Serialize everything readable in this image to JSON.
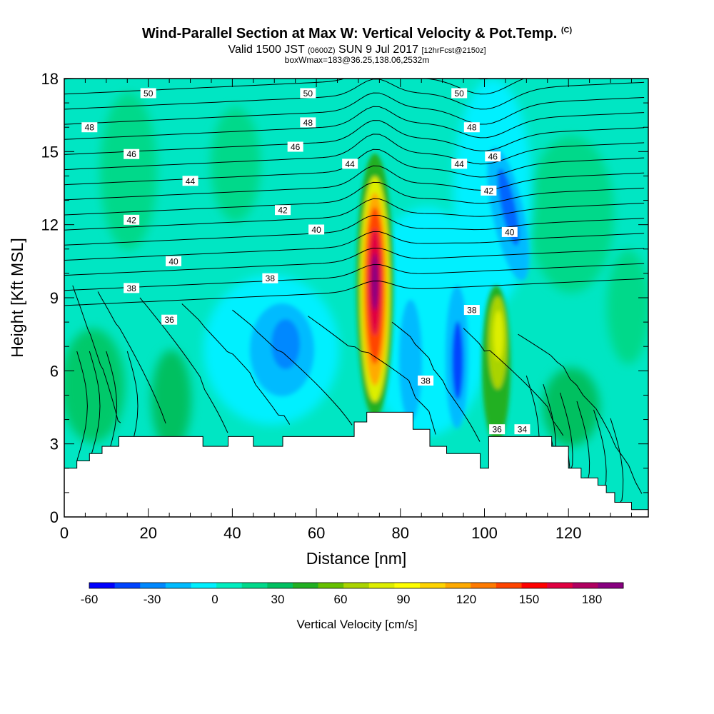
{
  "title": {
    "main": "Wind-Parallel Section at Max W: Vertical Velocity & Pot.Temp.",
    "copyright": "(C)",
    "valid_a": "Valid 1500 JST",
    "valid_zone": "(0600Z)",
    "valid_b": "SUN 9 Jul 2017",
    "valid_fcst": "[12hrFcst@2150z]",
    "box": "boxWmax=183@36.25,138.06,2532m"
  },
  "chart_data": {
    "type": "heatmap",
    "xlabel": "Distance [nm]",
    "ylabel": "Height [Kft MSL]",
    "xlim": [
      0,
      139
    ],
    "ylim": [
      0,
      18
    ],
    "xticks": [
      0,
      20,
      40,
      60,
      80,
      100,
      120
    ],
    "yticks": [
      0,
      3,
      6,
      9,
      12,
      15,
      18
    ],
    "grid": false,
    "colorbar": {
      "label": "Vertical Velocity [cm/s]",
      "range": [
        -60,
        195
      ],
      "step": 15,
      "tick_labels": [
        "-60",
        "-30",
        "0",
        "30",
        "60",
        "90",
        "120",
        "150",
        "180"
      ],
      "tick_values": [
        -60,
        -30,
        0,
        30,
        60,
        90,
        120,
        150,
        180
      ],
      "colors": [
        "#0000ff",
        "#0044ff",
        "#0088ff",
        "#00bbff",
        "#00f0ff",
        "#00eec0",
        "#00d98a",
        "#00c060",
        "#22b022",
        "#66c000",
        "#aad400",
        "#ddee00",
        "#ffff00",
        "#ffd400",
        "#ffaa00",
        "#ff7a00",
        "#ff4400",
        "#ff0000",
        "#e00040",
        "#b00060",
        "#880080"
      ]
    },
    "vertical_velocity_features": [
      {
        "x": 74.5,
        "y": 10.0,
        "peak": 183
      },
      {
        "x": 103.5,
        "y": 7.5,
        "peak": 60
      },
      {
        "x": 94,
        "y": 6.5,
        "peak": -60
      },
      {
        "x": 53,
        "y": 7.2,
        "peak": -45
      },
      {
        "x": 104,
        "y": 12.5,
        "peak": -55
      },
      {
        "x": 82,
        "y": 6.5,
        "peak": -25
      }
    ],
    "potential_temperature_labels": [
      {
        "text": "50",
        "x": 20,
        "y": 17.4
      },
      {
        "text": "50",
        "x": 58,
        "y": 17.4
      },
      {
        "text": "50",
        "x": 94,
        "y": 17.4
      },
      {
        "text": "48",
        "x": 6,
        "y": 16.0
      },
      {
        "text": "48",
        "x": 58,
        "y": 16.2
      },
      {
        "text": "48",
        "x": 97,
        "y": 16.0
      },
      {
        "text": "46",
        "x": 16,
        "y": 14.9
      },
      {
        "text": "46",
        "x": 55,
        "y": 15.2
      },
      {
        "text": "46",
        "x": 102,
        "y": 14.8
      },
      {
        "text": "44",
        "x": 30,
        "y": 13.8
      },
      {
        "text": "44",
        "x": 68,
        "y": 14.5
      },
      {
        "text": "44",
        "x": 94,
        "y": 14.5
      },
      {
        "text": "42",
        "x": 16,
        "y": 12.2
      },
      {
        "text": "42",
        "x": 52,
        "y": 12.6
      },
      {
        "text": "42",
        "x": 101,
        "y": 13.4
      },
      {
        "text": "40",
        "x": 26,
        "y": 10.5
      },
      {
        "text": "40",
        "x": 60,
        "y": 11.8
      },
      {
        "text": "40",
        "x": 106,
        "y": 11.7
      },
      {
        "text": "38",
        "x": 16,
        "y": 9.4
      },
      {
        "text": "38",
        "x": 49,
        "y": 9.8
      },
      {
        "text": "38",
        "x": 97,
        "y": 8.5
      },
      {
        "text": "38",
        "x": 86,
        "y": 5.6
      },
      {
        "text": "36",
        "x": 25,
        "y": 8.1
      },
      {
        "text": "36",
        "x": 103,
        "y": 3.6
      },
      {
        "text": "34",
        "x": 109,
        "y": 3.6
      }
    ],
    "terrain_profile": {
      "x": [
        0,
        3,
        3,
        6,
        6,
        9,
        9,
        13,
        13,
        33,
        33,
        39,
        39,
        45,
        45,
        52,
        52,
        69,
        69,
        72,
        72,
        83,
        83,
        87,
        87,
        91,
        91,
        99,
        99,
        101,
        101,
        116,
        116,
        120,
        120,
        123,
        123,
        127,
        127,
        129,
        129,
        131,
        131,
        135,
        135,
        139
      ],
      "y": [
        2.0,
        2.0,
        2.3,
        2.3,
        2.6,
        2.6,
        2.9,
        2.9,
        3.3,
        3.3,
        2.9,
        2.9,
        3.3,
        3.3,
        2.9,
        2.9,
        3.3,
        3.3,
        3.9,
        3.9,
        4.3,
        4.3,
        3.6,
        3.6,
        2.9,
        2.9,
        2.6,
        2.6,
        2.0,
        2.0,
        3.3,
        3.3,
        2.9,
        2.9,
        2.0,
        2.0,
        1.6,
        1.6,
        1.3,
        1.3,
        1.0,
        1.0,
        0.6,
        0.6,
        0.3,
        0.3
      ]
    }
  }
}
